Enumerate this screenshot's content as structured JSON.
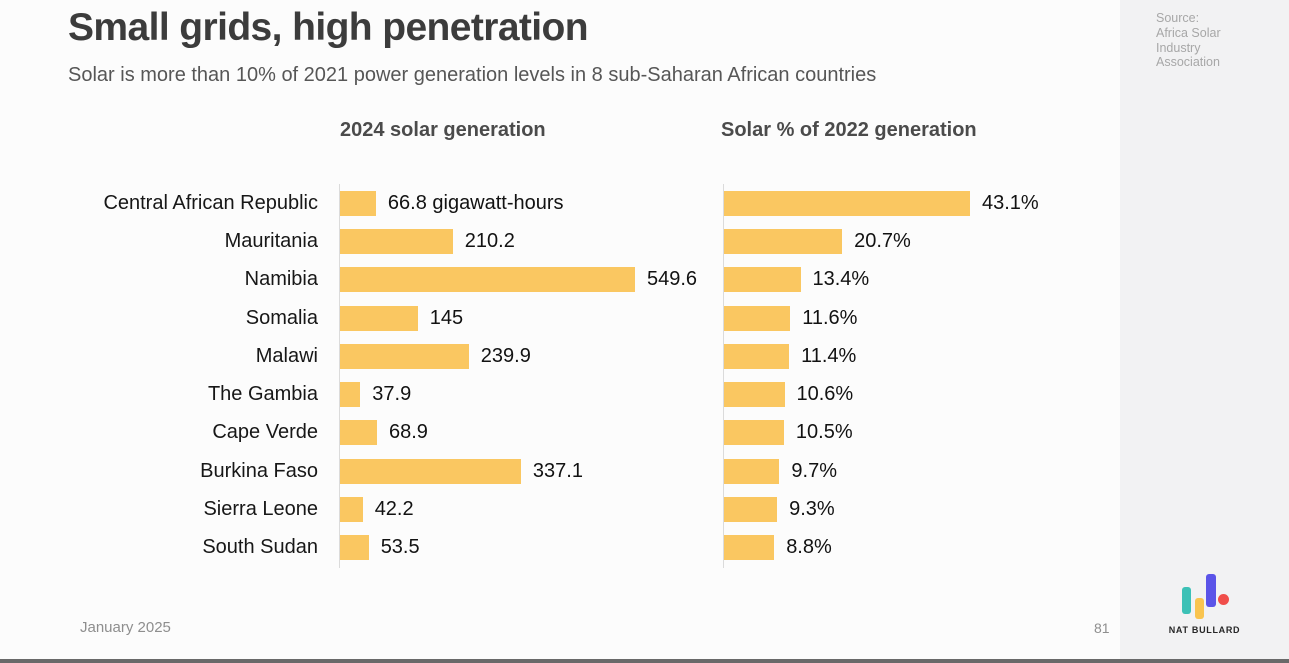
{
  "slide": {
    "title": "Small grids, high penetration",
    "subtitle": "Solar is more than 10% of 2021 power generation levels in 8 sub-Saharan African countries",
    "source": "Source: Africa Solar Industry Association",
    "date": "January 2025",
    "page_number": "81",
    "brand": "NAT BULLARD"
  },
  "chart_data": {
    "type": "bar",
    "orientation": "horizontal",
    "grid": false,
    "legend": false,
    "bar_color": "#FAC761",
    "categories": [
      "Central African Republic",
      "Mauritania",
      "Namibia",
      "Somalia",
      "Malawi",
      "The Gambia",
      "Cape Verde",
      "Burkina Faso",
      "Sierra Leone",
      "South Sudan"
    ],
    "series": [
      {
        "name": "2024 solar generation",
        "unit": "gigawatt-hours",
        "values": [
          66.8,
          210.2,
          549.6,
          145,
          239.9,
          37.9,
          68.9,
          337.1,
          42.2,
          53.5
        ],
        "value_labels": [
          "66.8 gigawatt-hours",
          "210.2",
          "549.6",
          "145",
          "239.9",
          "37.9",
          "68.9",
          "337.1",
          "42.2",
          "53.5"
        ],
        "axis_range": [
          0,
          549.6
        ]
      },
      {
        "name": "Solar % of 2022 generation",
        "unit": "percent",
        "values": [
          43.1,
          20.7,
          13.4,
          11.6,
          11.4,
          10.6,
          10.5,
          9.7,
          9.3,
          8.8
        ],
        "value_labels": [
          "43.1%",
          "20.7%",
          "13.4%",
          "11.6%",
          "11.4%",
          "10.6%",
          "10.5%",
          "9.7%",
          "9.3%",
          "8.8%"
        ],
        "axis_range": [
          0,
          43.1
        ]
      }
    ]
  },
  "colors": {
    "bar": "#FAC761",
    "logo_teal": "#3CC1B6",
    "logo_yellow": "#F9C44F",
    "logo_indigo": "#5B54E8",
    "logo_red": "#F04E4A"
  }
}
